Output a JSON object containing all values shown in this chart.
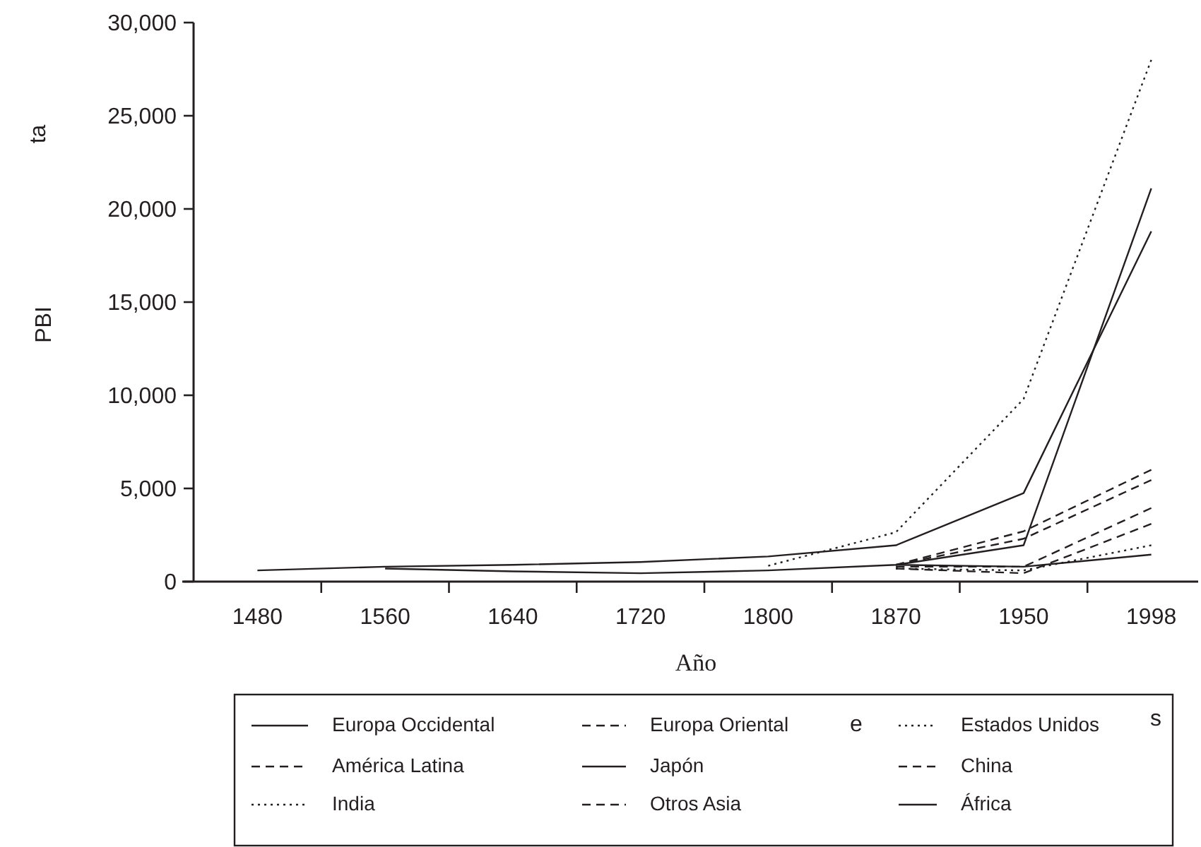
{
  "chart_data": {
    "type": "line",
    "xlabel": "Año",
    "ylabel": "PBI",
    "categories": [
      "1480",
      "1560",
      "1640",
      "1720",
      "1800",
      "1870",
      "1950",
      "1998"
    ],
    "ylim": [
      0,
      30000
    ],
    "yticks": [
      {
        "value": 0,
        "label": "0"
      },
      {
        "value": 5000,
        "label": "5,000"
      },
      {
        "value": 10000,
        "label": "10,000"
      },
      {
        "value": 15000,
        "label": "15,000"
      },
      {
        "value": 20000,
        "label": "20,000"
      },
      {
        "value": 25000,
        "label": "25,000"
      },
      {
        "value": 30000,
        "label": "30,000"
      }
    ],
    "legend": "bottom",
    "series": [
      {
        "name": "Europa Occidental",
        "color": "#231f20",
        "line_style": "solid",
        "values": [
          600,
          800,
          900,
          1050,
          1350,
          1950,
          4750,
          18800
        ]
      },
      {
        "name": "América Latina",
        "color": "#231f20",
        "line_style": "dashed",
        "values": [
          null,
          null,
          null,
          null,
          null,
          900,
          2700,
          6000
        ]
      },
      {
        "name": "India",
        "color": "#231f20",
        "line_style": "dotted",
        "values": [
          null,
          null,
          null,
          null,
          null,
          700,
          600,
          1950
        ]
      },
      {
        "name": "Europa Oriental",
        "color": "#231f20",
        "line_style": "dashed",
        "values": [
          null,
          null,
          null,
          null,
          null,
          900,
          2300,
          5450
        ]
      },
      {
        "name": "Japón",
        "color": "#231f20",
        "line_style": "solid",
        "values": [
          null,
          700,
          550,
          450,
          600,
          900,
          1950,
          21100
        ]
      },
      {
        "name": "Otros Asia",
        "color": "#231f20",
        "line_style": "dashed",
        "values": [
          null,
          null,
          null,
          null,
          null,
          800,
          800,
          3950
        ]
      },
      {
        "name": "Estados Unidos",
        "color": "#231f20",
        "line_style": "dotted",
        "values": [
          null,
          null,
          null,
          null,
          850,
          2650,
          9800,
          28000
        ]
      },
      {
        "name": "China",
        "color": "#231f20",
        "line_style": "dashed",
        "values": [
          null,
          null,
          null,
          null,
          null,
          700,
          450,
          3100
        ]
      },
      {
        "name": "África",
        "color": "#231f20",
        "line_style": "solid",
        "values": [
          null,
          null,
          null,
          null,
          null,
          900,
          800,
          1450
        ]
      }
    ],
    "annotations": [
      "ta",
      "e",
      "s"
    ]
  }
}
